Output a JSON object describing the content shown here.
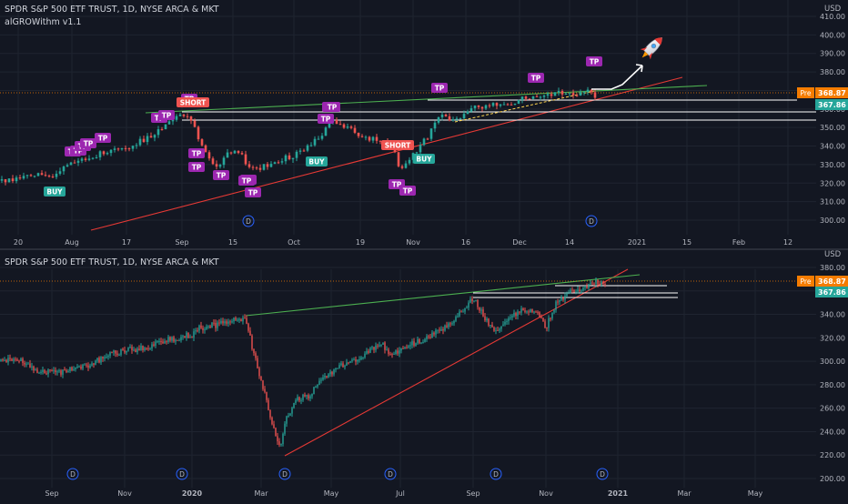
{
  "chart_data": [
    {
      "type": "candlestick",
      "title": "SPDR S&P 500 ETF TRUST, 1D, NYSE ARCA & MKT",
      "indicator": "alGROWithm v1.1",
      "currency": "USD",
      "ylim": [
        295,
        410
      ],
      "y_ticks": [
        "410.00",
        "400.00",
        "390.00",
        "380.00",
        "370.00",
        "360.00",
        "350.00",
        "340.00",
        "330.00",
        "320.00",
        "310.00",
        "300.00"
      ],
      "x_ticks": [
        "20",
        "Aug",
        "17",
        "Sep",
        "15",
        "Oct",
        "19",
        "Nov",
        "16",
        "Dec",
        "14",
        "2021",
        "15",
        "Feb",
        "12"
      ],
      "price_badges": [
        {
          "label": "Pre",
          "value": "368.87",
          "color": "#f57c00"
        },
        {
          "label": "",
          "value": "367.86",
          "color": "#26a69a"
        }
      ],
      "signals": [
        {
          "label": "BUY",
          "type": "buy",
          "value": 322
        },
        {
          "label": "TP",
          "type": "tp",
          "value": 334
        },
        {
          "label": "TP",
          "type": "tp",
          "value": 334
        },
        {
          "label": "TP",
          "type": "tp",
          "value": 336
        },
        {
          "label": "TP",
          "type": "tp",
          "value": 337
        },
        {
          "label": "TP",
          "type": "tp",
          "value": 339
        },
        {
          "label": "TP",
          "type": "tp",
          "value": 357
        },
        {
          "label": "TP",
          "type": "tp",
          "value": 358
        },
        {
          "label": "TP",
          "type": "tp",
          "value": 363
        },
        {
          "label": "SHORT",
          "type": "short",
          "value": 364
        },
        {
          "label": "TP",
          "type": "tp",
          "value": 346
        },
        {
          "label": "TP",
          "type": "tp",
          "value": 341
        },
        {
          "label": "TP",
          "type": "tp",
          "value": 335
        },
        {
          "label": "TP",
          "type": "tp",
          "value": 339
        },
        {
          "label": "TP",
          "type": "tp",
          "value": 325
        },
        {
          "label": "TP",
          "type": "tp",
          "value": 321
        },
        {
          "label": "BUY",
          "type": "buy",
          "value": 331
        },
        {
          "label": "TP",
          "type": "tp",
          "value": 352
        },
        {
          "label": "TP",
          "type": "tp",
          "value": 356
        },
        {
          "label": "TP",
          "type": "tp",
          "value": 361
        },
        {
          "label": "SHORT",
          "type": "short",
          "value": 340
        },
        {
          "label": "TP",
          "type": "tp",
          "value": 320
        },
        {
          "label": "TP",
          "type": "tp",
          "value": 317
        },
        {
          "label": "BUY",
          "type": "buy",
          "value": 332
        },
        {
          "label": "TP",
          "type": "tp",
          "value": 372
        },
        {
          "label": "TP",
          "type": "tp",
          "value": 378
        },
        {
          "label": "TP",
          "type": "tp",
          "value": 382
        }
      ],
      "dividend_markers": [
        "D",
        "D"
      ]
    },
    {
      "type": "candlestick",
      "title": "SPDR S&P 500 ETF TRUST, 1D, NYSE ARCA & MKT",
      "currency": "USD",
      "ylim": [
        196,
        384
      ],
      "y_ticks": [
        "380.00",
        "360.00",
        "340.00",
        "320.00",
        "300.00",
        "280.00",
        "260.00",
        "240.00",
        "220.00",
        "200.00"
      ],
      "x_ticks": [
        "Sep",
        "Nov",
        "2020",
        "Mar",
        "May",
        "Jul",
        "Sep",
        "Nov",
        "2021",
        "Mar",
        "May"
      ],
      "price_badges": [
        {
          "label": "Pre",
          "value": "368.87",
          "color": "#f57c00"
        },
        {
          "label": "",
          "value": "367.86",
          "color": "#26a69a"
        }
      ],
      "dividend_markers": [
        "D",
        "D",
        "D",
        "D",
        "D",
        "D",
        "D",
        "D"
      ]
    }
  ]
}
